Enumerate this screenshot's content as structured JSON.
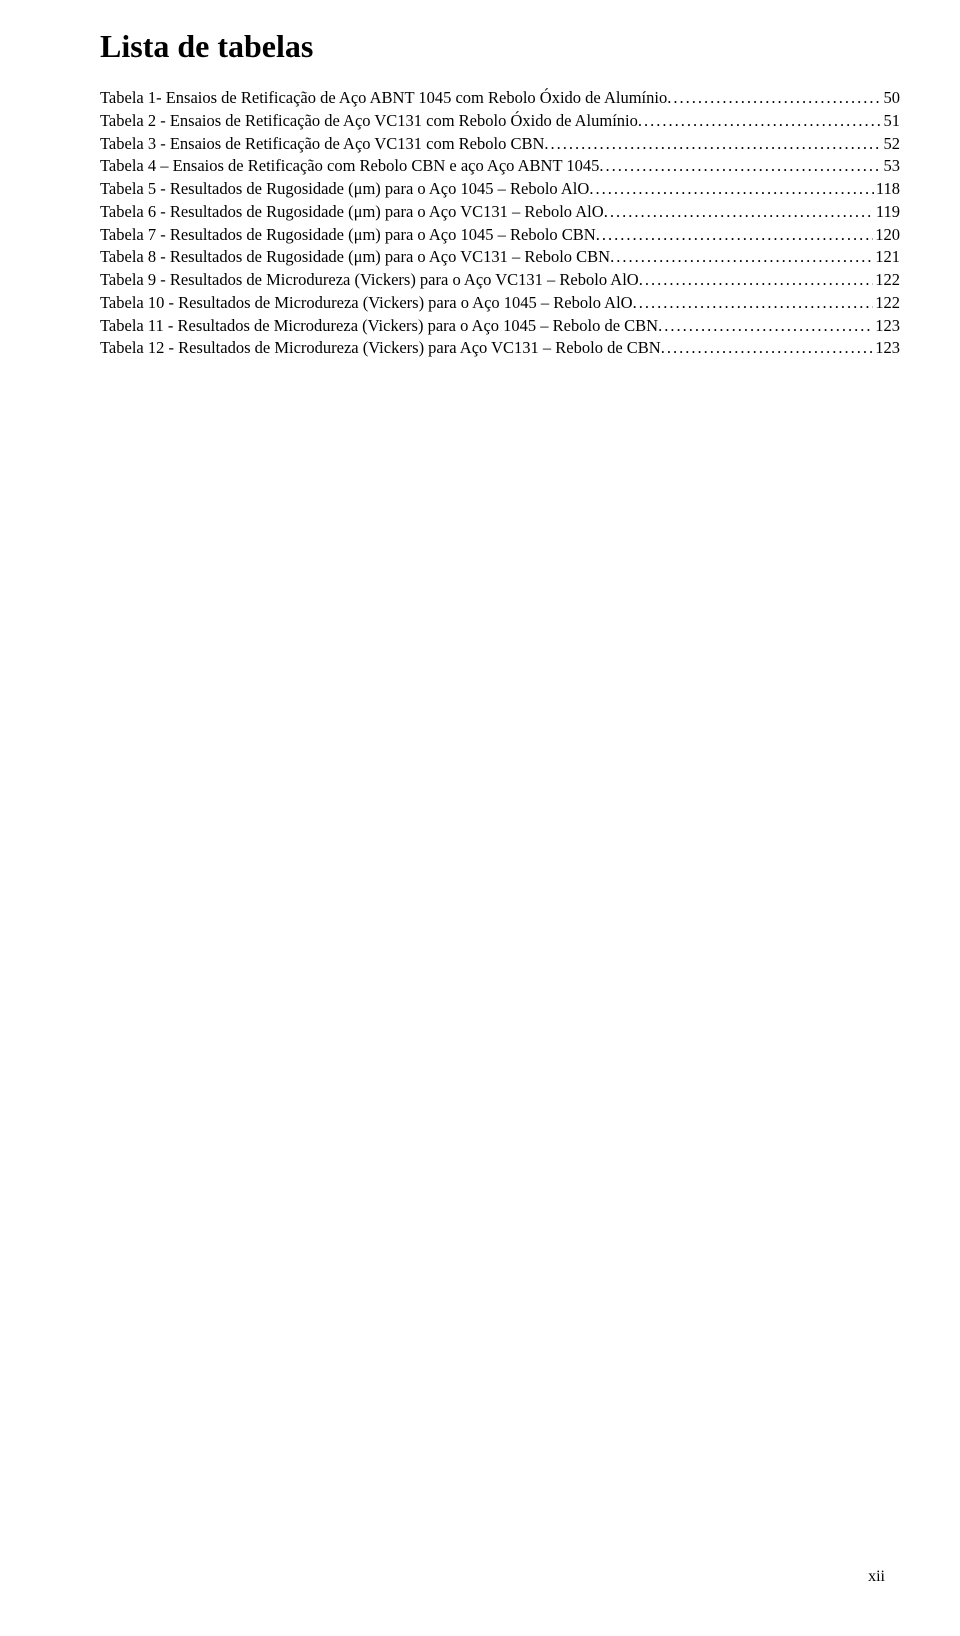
{
  "title": "Lista de tabelas",
  "entries": [
    {
      "label": "Tabela 1- Ensaios de Retificação de Aço ABNT 1045 com Rebolo Óxido de Alumínio",
      "page": "50"
    },
    {
      "label": "Tabela 2 - Ensaios de Retificação de Aço VC131 com Rebolo Óxido de Alumínio",
      "page": "51"
    },
    {
      "label": "Tabela 3 - Ensaios de Retificação de Aço VC131 com Rebolo CBN",
      "page": "52"
    },
    {
      "label": "Tabela 4 – Ensaios de Retificação com Rebolo CBN e aço Aço ABNT 1045",
      "page": "53"
    },
    {
      "label": "Tabela 5 - Resultados de Rugosidade (μm)  para o Aço 1045 – Rebolo AlO",
      "page": "118"
    },
    {
      "label": "Tabela 6 - Resultados de Rugosidade (μm)  para o Aço VC131 – Rebolo AlO",
      "page": "119"
    },
    {
      "label": "Tabela 7 - Resultados de Rugosidade (μm)  para o Aço 1045 – Rebolo CBN",
      "page": "120"
    },
    {
      "label": "Tabela 8 - Resultados de Rugosidade (μm) para o Aço VC131 – Rebolo CBN",
      "page": "121"
    },
    {
      "label": "Tabela 9 - Resultados de Microdureza (Vickers) para o Aço VC131 – Rebolo AlO",
      "page": "122"
    },
    {
      "label": "Tabela 10 - Resultados de Microdureza (Vickers) para o Aço 1045 – Rebolo AlO",
      "page": "122"
    },
    {
      "label": "Tabela 11 - Resultados de Microdureza (Vickers) para o Aço 1045 – Rebolo de CBN",
      "page": "123"
    },
    {
      "label": "Tabela 12 - Resultados de Microdureza (Vickers) para Aço VC131 – Rebolo de CBN",
      "page": "123"
    }
  ],
  "pageNumber": "xii"
}
